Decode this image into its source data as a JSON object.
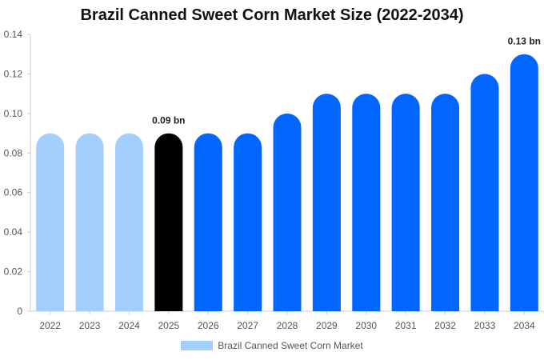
{
  "chart_data": {
    "type": "bar",
    "title": "Brazil Canned Sweet Corn Market Size (2022-2034)",
    "xlabel": "",
    "ylabel": "",
    "categories": [
      "2022",
      "2023",
      "2024",
      "2025",
      "2026",
      "2027",
      "2028",
      "2029",
      "2030",
      "2031",
      "2032",
      "2033",
      "2034"
    ],
    "series": [
      {
        "name": "Brazil Canned Sweet Corn Market",
        "values": [
          0.09,
          0.09,
          0.09,
          0.09,
          0.09,
          0.09,
          0.1,
          0.11,
          0.11,
          0.11,
          0.11,
          0.12,
          0.13
        ]
      }
    ],
    "bar_colors": [
      "#a3cfff",
      "#a3cfff",
      "#a3cfff",
      "#000000",
      "#0066ff",
      "#0066ff",
      "#0066ff",
      "#0066ff",
      "#0066ff",
      "#0066ff",
      "#0066ff",
      "#0066ff",
      "#0066ff"
    ],
    "data_labels": [
      {
        "category": "2025",
        "text": "0.09 bn"
      },
      {
        "category": "2034",
        "text": "0.13 bn"
      }
    ],
    "ylim": [
      0,
      0.14
    ],
    "yticks": [
      "0",
      "0.02",
      "0.04",
      "0.06",
      "0.08",
      "0.10",
      "0.12",
      "0.14"
    ],
    "grid": false,
    "legend_position": "bottom",
    "legend_color": "#a3cfff"
  }
}
